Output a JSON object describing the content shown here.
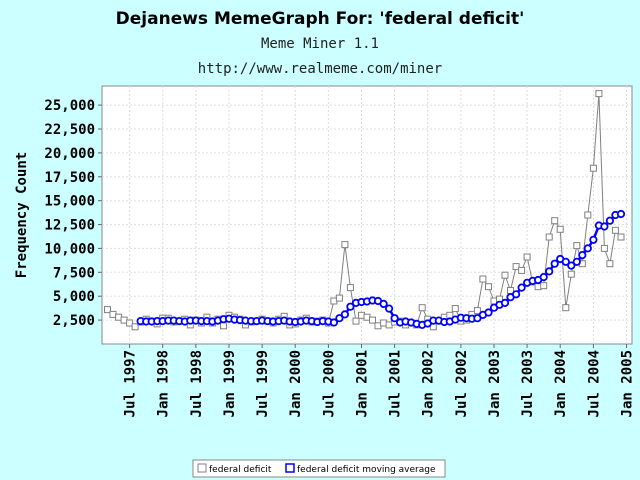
{
  "chart_data": {
    "type": "line",
    "title": "Dejanews MemeGraph For: 'federal deficit'",
    "subtitles": [
      "Meme Miner 1.1",
      "http://www.realmeme.com/miner"
    ],
    "ylabel": "Frequency Count",
    "xlabel": "",
    "ylim": [
      0,
      27000
    ],
    "yticks": [
      "2,500",
      "5,000",
      "7,500",
      "10,000",
      "12,500",
      "15,000",
      "17,500",
      "20,000",
      "22,500",
      "25,000"
    ],
    "ytick_values": [
      2500,
      5000,
      7500,
      10000,
      12500,
      15000,
      17500,
      20000,
      22500,
      25000
    ],
    "x_range": [
      "1997-02",
      "2005-02"
    ],
    "xticks": [
      {
        "date": "1997-07",
        "label": "Jul 1997"
      },
      {
        "date": "1998-01",
        "label": "Jan 1998"
      },
      {
        "date": "1998-07",
        "label": "Jul 1998"
      },
      {
        "date": "1999-01",
        "label": "Jan 1999"
      },
      {
        "date": "1999-07",
        "label": "Jul 1999"
      },
      {
        "date": "2000-01",
        "label": "Jan 2000"
      },
      {
        "date": "2000-07",
        "label": "Jul 2000"
      },
      {
        "date": "2001-01",
        "label": "Jan 2001"
      },
      {
        "date": "2001-07",
        "label": "Jul 2001"
      },
      {
        "date": "2002-01",
        "label": "Jan 2002"
      },
      {
        "date": "2002-07",
        "label": "Jul 2002"
      },
      {
        "date": "2003-01",
        "label": "Jan 2003"
      },
      {
        "date": "2003-07",
        "label": "Jul 2003"
      },
      {
        "date": "2004-01",
        "label": "Jan 2004"
      },
      {
        "date": "2004-07",
        "label": "Jul 2004"
      },
      {
        "date": "2005-01",
        "label": "Jan 2005"
      }
    ],
    "grid": true,
    "legend_position": "bottom",
    "colors": {
      "series1": "#808080",
      "series2": "#0000ff",
      "background": "#ccffff",
      "plot_background": "#ffffff",
      "grid": "#dddddd"
    },
    "series": [
      {
        "name": "federal deficit",
        "marker": "square",
        "points": [
          {
            "x": "1997-03",
            "y": 3600
          },
          {
            "x": "1997-04",
            "y": 3100
          },
          {
            "x": "1997-05",
            "y": 2800
          },
          {
            "x": "1997-06",
            "y": 2500
          },
          {
            "x": "1997-07",
            "y": 2200
          },
          {
            "x": "1997-08",
            "y": 1800
          },
          {
            "x": "1997-09",
            "y": 2300
          },
          {
            "x": "1997-10",
            "y": 2600
          },
          {
            "x": "1997-11",
            "y": 2400
          },
          {
            "x": "1997-12",
            "y": 2100
          },
          {
            "x": "1998-01",
            "y": 2700
          },
          {
            "x": "1998-02",
            "y": 2700
          },
          {
            "x": "1998-03",
            "y": 2300
          },
          {
            "x": "1998-04",
            "y": 2400
          },
          {
            "x": "1998-05",
            "y": 2600
          },
          {
            "x": "1998-06",
            "y": 2000
          },
          {
            "x": "1998-07",
            "y": 2500
          },
          {
            "x": "1998-08",
            "y": 2200
          },
          {
            "x": "1998-09",
            "y": 2800
          },
          {
            "x": "1998-10",
            "y": 2200
          },
          {
            "x": "1998-11",
            "y": 2600
          },
          {
            "x": "1998-12",
            "y": 1900
          },
          {
            "x": "1999-01",
            "y": 3000
          },
          {
            "x": "1999-02",
            "y": 2800
          },
          {
            "x": "1999-03",
            "y": 2600
          },
          {
            "x": "1999-04",
            "y": 2000
          },
          {
            "x": "1999-05",
            "y": 2300
          },
          {
            "x": "1999-06",
            "y": 2400
          },
          {
            "x": "1999-07",
            "y": 2600
          },
          {
            "x": "1999-08",
            "y": 2400
          },
          {
            "x": "1999-09",
            "y": 2200
          },
          {
            "x": "1999-10",
            "y": 2600
          },
          {
            "x": "1999-11",
            "y": 2900
          },
          {
            "x": "1999-12",
            "y": 2000
          },
          {
            "x": "2000-01",
            "y": 2100
          },
          {
            "x": "2000-02",
            "y": 2500
          },
          {
            "x": "2000-03",
            "y": 2700
          },
          {
            "x": "2000-04",
            "y": 2300
          },
          {
            "x": "2000-05",
            "y": 2400
          },
          {
            "x": "2000-06",
            "y": 2500
          },
          {
            "x": "2000-07",
            "y": 2200
          },
          {
            "x": "2000-08",
            "y": 4500
          },
          {
            "x": "2000-09",
            "y": 4800
          },
          {
            "x": "2000-10",
            "y": 10400
          },
          {
            "x": "2000-11",
            "y": 5900
          },
          {
            "x": "2000-12",
            "y": 2400
          },
          {
            "x": "2001-01",
            "y": 3000
          },
          {
            "x": "2001-02",
            "y": 2800
          },
          {
            "x": "2001-03",
            "y": 2500
          },
          {
            "x": "2001-04",
            "y": 1900
          },
          {
            "x": "2001-05",
            "y": 2200
          },
          {
            "x": "2001-06",
            "y": 2000
          },
          {
            "x": "2001-07",
            "y": 2300
          },
          {
            "x": "2001-08",
            "y": 2400
          },
          {
            "x": "2001-09",
            "y": 2000
          },
          {
            "x": "2001-10",
            "y": 2200
          },
          {
            "x": "2001-11",
            "y": 2000
          },
          {
            "x": "2001-12",
            "y": 3800
          },
          {
            "x": "2002-01",
            "y": 2600
          },
          {
            "x": "2002-02",
            "y": 1800
          },
          {
            "x": "2002-03",
            "y": 2400
          },
          {
            "x": "2002-04",
            "y": 2800
          },
          {
            "x": "2002-05",
            "y": 3000
          },
          {
            "x": "2002-06",
            "y": 3700
          },
          {
            "x": "2002-07",
            "y": 2400
          },
          {
            "x": "2002-08",
            "y": 2500
          },
          {
            "x": "2002-09",
            "y": 3100
          },
          {
            "x": "2002-10",
            "y": 3500
          },
          {
            "x": "2002-11",
            "y": 6800
          },
          {
            "x": "2002-12",
            "y": 6000
          },
          {
            "x": "2003-01",
            "y": 4500
          },
          {
            "x": "2003-02",
            "y": 4700
          },
          {
            "x": "2003-03",
            "y": 7200
          },
          {
            "x": "2003-04",
            "y": 5600
          },
          {
            "x": "2003-05",
            "y": 8100
          },
          {
            "x": "2003-06",
            "y": 7700
          },
          {
            "x": "2003-07",
            "y": 9100
          },
          {
            "x": "2003-08",
            "y": 6500
          },
          {
            "x": "2003-09",
            "y": 6000
          },
          {
            "x": "2003-10",
            "y": 6100
          },
          {
            "x": "2003-11",
            "y": 11200
          },
          {
            "x": "2003-12",
            "y": 12900
          },
          {
            "x": "2004-01",
            "y": 12000
          },
          {
            "x": "2004-02",
            "y": 3800
          },
          {
            "x": "2004-03",
            "y": 7300
          },
          {
            "x": "2004-04",
            "y": 10300
          },
          {
            "x": "2004-05",
            "y": 8400
          },
          {
            "x": "2004-06",
            "y": 13500
          },
          {
            "x": "2004-07",
            "y": 18400
          },
          {
            "x": "2004-08",
            "y": 26200
          },
          {
            "x": "2004-09",
            "y": 10000
          },
          {
            "x": "2004-10",
            "y": 8400
          },
          {
            "x": "2004-11",
            "y": 11900
          },
          {
            "x": "2004-12",
            "y": 11200
          }
        ]
      },
      {
        "name": "federal deficit moving average",
        "marker": "circle",
        "points": [
          {
            "x": "1997-09",
            "y": 2400
          },
          {
            "x": "1997-10",
            "y": 2350
          },
          {
            "x": "1997-11",
            "y": 2350
          },
          {
            "x": "1997-12",
            "y": 2400
          },
          {
            "x": "1998-01",
            "y": 2400
          },
          {
            "x": "1998-02",
            "y": 2450
          },
          {
            "x": "1998-03",
            "y": 2450
          },
          {
            "x": "1998-04",
            "y": 2400
          },
          {
            "x": "1998-05",
            "y": 2350
          },
          {
            "x": "1998-06",
            "y": 2450
          },
          {
            "x": "1998-07",
            "y": 2450
          },
          {
            "x": "1998-08",
            "y": 2400
          },
          {
            "x": "1998-09",
            "y": 2400
          },
          {
            "x": "1998-10",
            "y": 2350
          },
          {
            "x": "1998-11",
            "y": 2450
          },
          {
            "x": "1998-12",
            "y": 2600
          },
          {
            "x": "1999-01",
            "y": 2650
          },
          {
            "x": "1999-02",
            "y": 2550
          },
          {
            "x": "1999-03",
            "y": 2500
          },
          {
            "x": "1999-04",
            "y": 2450
          },
          {
            "x": "1999-05",
            "y": 2400
          },
          {
            "x": "1999-06",
            "y": 2400
          },
          {
            "x": "1999-07",
            "y": 2450
          },
          {
            "x": "1999-08",
            "y": 2400
          },
          {
            "x": "1999-09",
            "y": 2350
          },
          {
            "x": "1999-10",
            "y": 2400
          },
          {
            "x": "1999-11",
            "y": 2450
          },
          {
            "x": "1999-12",
            "y": 2350
          },
          {
            "x": "2000-01",
            "y": 2300
          },
          {
            "x": "2000-02",
            "y": 2350
          },
          {
            "x": "2000-03",
            "y": 2450
          },
          {
            "x": "2000-04",
            "y": 2400
          },
          {
            "x": "2000-05",
            "y": 2300
          },
          {
            "x": "2000-06",
            "y": 2400
          },
          {
            "x": "2000-07",
            "y": 2350
          },
          {
            "x": "2000-08",
            "y": 2250
          },
          {
            "x": "2000-09",
            "y": 2700
          },
          {
            "x": "2000-10",
            "y": 3100
          },
          {
            "x": "2000-11",
            "y": 3900
          },
          {
            "x": "2000-12",
            "y": 4300
          },
          {
            "x": "2001-01",
            "y": 4400
          },
          {
            "x": "2001-02",
            "y": 4450
          },
          {
            "x": "2001-03",
            "y": 4550
          },
          {
            "x": "2001-04",
            "y": 4500
          },
          {
            "x": "2001-05",
            "y": 4200
          },
          {
            "x": "2001-06",
            "y": 3700
          },
          {
            "x": "2001-07",
            "y": 2700
          },
          {
            "x": "2001-08",
            "y": 2250
          },
          {
            "x": "2001-09",
            "y": 2350
          },
          {
            "x": "2001-10",
            "y": 2250
          },
          {
            "x": "2001-11",
            "y": 2100
          },
          {
            "x": "2001-12",
            "y": 2000
          },
          {
            "x": "2002-01",
            "y": 2150
          },
          {
            "x": "2002-02",
            "y": 2450
          },
          {
            "x": "2002-03",
            "y": 2450
          },
          {
            "x": "2002-04",
            "y": 2300
          },
          {
            "x": "2002-05",
            "y": 2350
          },
          {
            "x": "2002-06",
            "y": 2550
          },
          {
            "x": "2002-07",
            "y": 2750
          },
          {
            "x": "2002-08",
            "y": 2700
          },
          {
            "x": "2002-09",
            "y": 2650
          },
          {
            "x": "2002-10",
            "y": 2700
          },
          {
            "x": "2002-11",
            "y": 3050
          },
          {
            "x": "2002-12",
            "y": 3300
          },
          {
            "x": "2003-01",
            "y": 3800
          },
          {
            "x": "2003-02",
            "y": 4100
          },
          {
            "x": "2003-03",
            "y": 4300
          },
          {
            "x": "2003-04",
            "y": 4900
          },
          {
            "x": "2003-05",
            "y": 5200
          },
          {
            "x": "2003-06",
            "y": 5900
          },
          {
            "x": "2003-07",
            "y": 6400
          },
          {
            "x": "2003-08",
            "y": 6600
          },
          {
            "x": "2003-09",
            "y": 6700
          },
          {
            "x": "2003-10",
            "y": 7000
          },
          {
            "x": "2003-11",
            "y": 7600
          },
          {
            "x": "2003-12",
            "y": 8400
          },
          {
            "x": "2004-01",
            "y": 8900
          },
          {
            "x": "2004-02",
            "y": 8600
          },
          {
            "x": "2004-03",
            "y": 8200
          },
          {
            "x": "2004-04",
            "y": 8600
          },
          {
            "x": "2004-05",
            "y": 9300
          },
          {
            "x": "2004-06",
            "y": 10000
          },
          {
            "x": "2004-07",
            "y": 10900
          },
          {
            "x": "2004-08",
            "y": 12400
          },
          {
            "x": "2004-09",
            "y": 12300
          },
          {
            "x": "2004-10",
            "y": 12900
          },
          {
            "x": "2004-11",
            "y": 13500
          },
          {
            "x": "2004-12",
            "y": 13600
          }
        ]
      }
    ]
  }
}
